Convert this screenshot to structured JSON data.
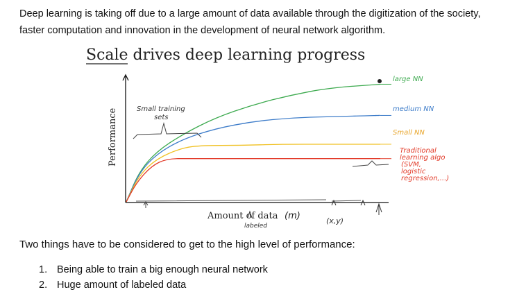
{
  "intro": {
    "line1": "Deep learning is taking off due to a large amount of data available through the digitization of the society,",
    "line2": "faster computation and innovation in the development of neural network algorithm."
  },
  "chart_data": {
    "type": "line",
    "title": "Scale drives deep learning progress",
    "xlabel": "Amount of data",
    "xlabel_note": "(m)",
    "xlabel_subnote": "labeled",
    "ylabel": "Performance",
    "series": [
      {
        "name": "large NN",
        "color": "#3daa4f",
        "shape": [
          [
            0,
            0
          ],
          [
            0.05,
            0.25
          ],
          [
            0.12,
            0.42
          ],
          [
            0.22,
            0.56
          ],
          [
            0.35,
            0.7
          ],
          [
            0.5,
            0.81
          ],
          [
            0.65,
            0.89
          ],
          [
            0.8,
            0.95
          ],
          [
            1.0,
            0.98
          ]
        ]
      },
      {
        "name": "medium NN",
        "color": "#3d7cc9",
        "shape": [
          [
            0,
            0
          ],
          [
            0.05,
            0.24
          ],
          [
            0.12,
            0.4
          ],
          [
            0.22,
            0.52
          ],
          [
            0.35,
            0.61
          ],
          [
            0.5,
            0.67
          ],
          [
            0.65,
            0.7
          ],
          [
            0.8,
            0.71
          ],
          [
            1.0,
            0.72
          ]
        ]
      },
      {
        "name": "small NN",
        "color": "#f0c020",
        "shape": [
          [
            0,
            0
          ],
          [
            0.05,
            0.22
          ],
          [
            0.12,
            0.36
          ],
          [
            0.22,
            0.45
          ],
          [
            0.3,
            0.47
          ],
          [
            0.45,
            0.47
          ],
          [
            0.6,
            0.48
          ],
          [
            0.8,
            0.48
          ],
          [
            1.0,
            0.48
          ]
        ]
      },
      {
        "name": "Traditional learning algo (SVM, logistic regression,...)",
        "color": "#e23a28",
        "shape": [
          [
            0,
            0
          ],
          [
            0.04,
            0.16
          ],
          [
            0.1,
            0.3
          ],
          [
            0.16,
            0.36
          ],
          [
            0.25,
            0.36
          ],
          [
            0.4,
            0.36
          ],
          [
            0.6,
            0.36
          ],
          [
            0.8,
            0.36
          ],
          [
            1.0,
            0.36
          ]
        ]
      }
    ],
    "annotations": {
      "small_training": "Small training sets",
      "xy": "(x,y)"
    }
  },
  "summary": {
    "heading": "Two things have to be considered to get to the high level of performance:",
    "items": [
      {
        "num": "1.",
        "text": "Being able to train a big enough neural network"
      },
      {
        "num": "2.",
        "text": "Huge amount of labeled data"
      }
    ]
  }
}
